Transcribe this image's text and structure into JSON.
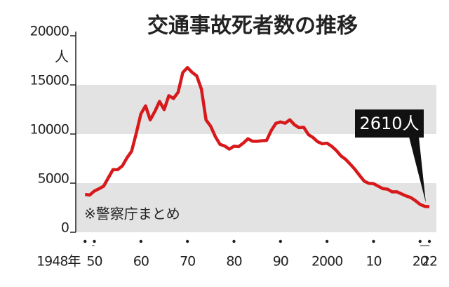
{
  "chart_data": {
    "type": "line",
    "title": "交通事故死者数の推移",
    "y_label": "人",
    "note": "※警察庁まとめ",
    "annotation": "2610人",
    "x": [
      1948,
      1949,
      1950,
      1951,
      1952,
      1953,
      1954,
      1955,
      1956,
      1957,
      1958,
      1959,
      1960,
      1961,
      1962,
      1963,
      1964,
      1965,
      1966,
      1967,
      1968,
      1969,
      1970,
      1971,
      1972,
      1973,
      1974,
      1975,
      1976,
      1977,
      1978,
      1979,
      1980,
      1981,
      1982,
      1983,
      1984,
      1985,
      1986,
      1987,
      1988,
      1989,
      1990,
      1991,
      1992,
      1993,
      1994,
      1995,
      1996,
      1997,
      1998,
      1999,
      2000,
      2001,
      2002,
      2003,
      2004,
      2005,
      2006,
      2007,
      2008,
      2009,
      2010,
      2011,
      2012,
      2013,
      2014,
      2015,
      2016,
      2017,
      2018,
      2019,
      2020,
      2021,
      2022
    ],
    "series": [
      {
        "color": "#d7191c",
        "values": [
          3848,
          3790,
          4202,
          4429,
          4696,
          5544,
          6374,
          6379,
          6751,
          7575,
          8248,
          10079,
          12055,
          12865,
          11445,
          12301,
          13318,
          12484,
          13904,
          13618,
          14256,
          16257,
          16765,
          16278,
          15918,
          14574,
          11432,
          10792,
          9734,
          8945,
          8783,
          8466,
          8760,
          8719,
          9073,
          9520,
          9262,
          9261,
          9317,
          9347,
          10344,
          11086,
          11227,
          11105,
          11452,
          10942,
          10649,
          10684,
          9943,
          9640,
          9211,
          9006,
          9066,
          8757,
          8326,
          7768,
          7425,
          6927,
          6403,
          5782,
          5197,
          4979,
          4948,
          4691,
          4438,
          4388,
          4113,
          4117,
          3904,
          3694,
          3532,
          3215,
          2839,
          2636,
          2610
        ]
      }
    ],
    "xlim": [
      1946,
      2023.5
    ],
    "xticks": [
      {
        "value": 1948,
        "label": "1948年"
      },
      {
        "value": 1950,
        "label": "50"
      },
      {
        "value": 1960,
        "label": "60"
      },
      {
        "value": 1970,
        "label": "70"
      },
      {
        "value": 1980,
        "label": "80"
      },
      {
        "value": 1990,
        "label": "90"
      },
      2000,
      {
        "value": 2010,
        "label": "10"
      },
      {
        "value": 2020,
        "label": "20"
      },
      {
        "value": 2022,
        "label": "22"
      }
    ],
    "ylim": [
      0,
      20000
    ],
    "yticks": [
      0,
      5000,
      10000,
      15000,
      20000
    ],
    "bands": true
  }
}
